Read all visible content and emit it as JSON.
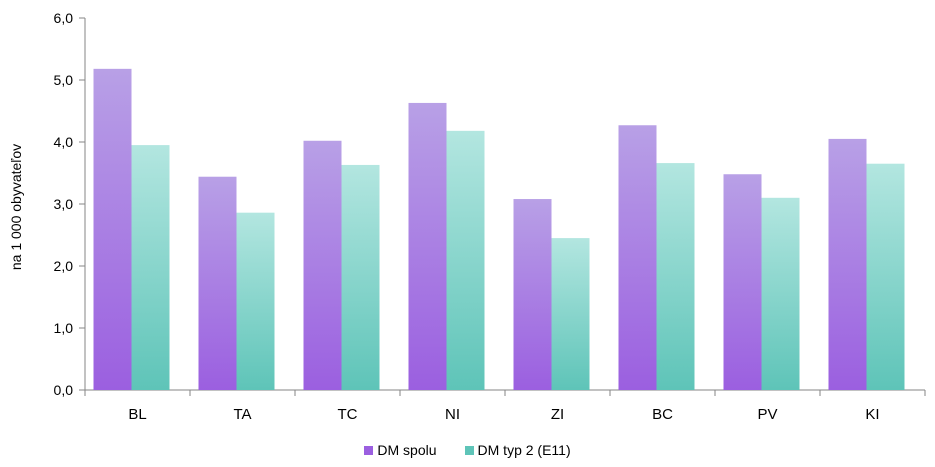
{
  "chart_data": {
    "type": "bar",
    "title": "",
    "xlabel": "",
    "ylabel": "na 1 000 obyvateľov",
    "categories": [
      "BL",
      "TA",
      "TC",
      "NI",
      "ZI",
      "BC",
      "PV",
      "KI"
    ],
    "series": [
      {
        "name": "DM spolu",
        "values": [
          5.18,
          3.44,
          4.02,
          4.63,
          3.08,
          4.27,
          3.48,
          4.05
        ],
        "color_top": "#b8a0e6",
        "color_bottom": "#9b5fe0"
      },
      {
        "name": "DM typ 2 (E11)",
        "values": [
          3.95,
          2.86,
          3.63,
          4.18,
          2.45,
          3.66,
          3.1,
          3.65
        ],
        "color_top": "#b3e6e0",
        "color_bottom": "#5ec4b8"
      }
    ],
    "ylim": [
      0,
      6
    ],
    "yticks": [
      "0,0",
      "1,0",
      "2,0",
      "3,0",
      "4,0",
      "5,0",
      "6,0"
    ],
    "grid": false,
    "legend_position": "bottom"
  }
}
